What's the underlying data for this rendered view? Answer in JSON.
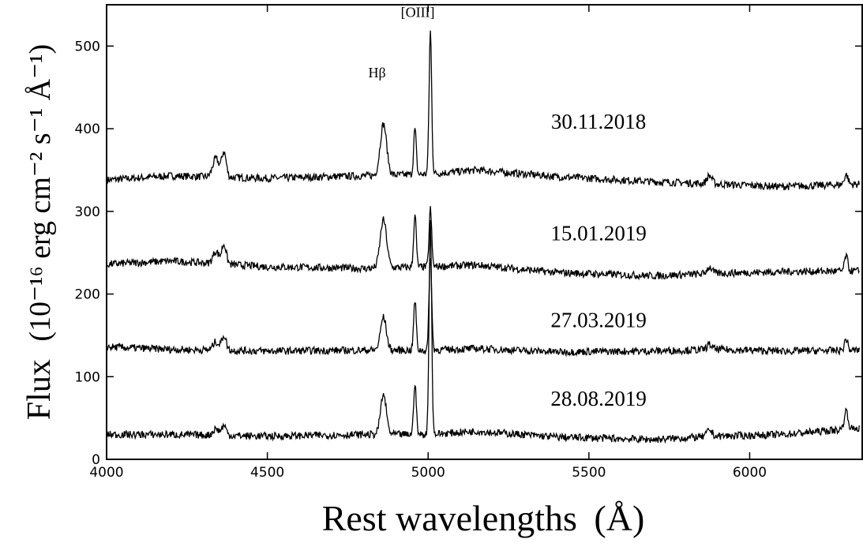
{
  "chart_data": {
    "type": "line",
    "xlabel": "Rest wavelengths",
    "xlabel_unit": "Å",
    "ylabel": "Flux",
    "ylabel_unit": "(10⁻¹⁶ erg cm⁻² s⁻¹ Å⁻¹)",
    "xlim": [
      4000,
      6350
    ],
    "ylim": [
      0,
      550
    ],
    "xticks": [
      4000,
      4500,
      5000,
      5500,
      6000
    ],
    "yticks": [
      0,
      100,
      200,
      300,
      400,
      500
    ],
    "grid": false,
    "annotations": [
      {
        "text": "Hβ",
        "x": 4861
      },
      {
        "text": "[OIII]",
        "x": 5007
      }
    ],
    "series": [
      {
        "name": "30.11.2018",
        "baseline": [
          [
            4000,
            338
          ],
          [
            4200,
            343
          ],
          [
            4500,
            340
          ],
          [
            4800,
            343
          ],
          [
            5000,
            345
          ],
          [
            5150,
            350
          ],
          [
            5400,
            342
          ],
          [
            5700,
            336
          ],
          [
            5900,
            333
          ],
          [
            6100,
            330
          ],
          [
            6350,
            333
          ]
        ],
        "lines": [
          {
            "x": 4340,
            "height": 22,
            "width": 10
          },
          {
            "x": 4365,
            "height": 30,
            "width": 7
          },
          {
            "x": 4861,
            "height": 62,
            "width": 10
          },
          {
            "x": 4959,
            "height": 55,
            "width": 4
          },
          {
            "x": 5007,
            "height": 173,
            "width": 4
          },
          {
            "x": 5875,
            "height": 10,
            "width": 8
          },
          {
            "x": 6300,
            "height": 12,
            "width": 6
          }
        ]
      },
      {
        "name": "15.01.2019",
        "baseline": [
          [
            4000,
            236
          ],
          [
            4200,
            240
          ],
          [
            4500,
            233
          ],
          [
            4800,
            231
          ],
          [
            5000,
            233
          ],
          [
            5150,
            235
          ],
          [
            5400,
            226
          ],
          [
            5700,
            222
          ],
          [
            5900,
            225
          ],
          [
            6100,
            227
          ],
          [
            6350,
            228
          ]
        ],
        "lines": [
          {
            "x": 4340,
            "height": 15,
            "width": 9
          },
          {
            "x": 4365,
            "height": 24,
            "width": 7
          },
          {
            "x": 4861,
            "height": 58,
            "width": 10
          },
          {
            "x": 4959,
            "height": 64,
            "width": 4
          },
          {
            "x": 5007,
            "height": 70,
            "width": 4
          },
          {
            "x": 5875,
            "height": 8,
            "width": 8
          },
          {
            "x": 6300,
            "height": 18,
            "width": 5
          }
        ]
      },
      {
        "name": "27.03.2019",
        "baseline": [
          [
            4000,
            136
          ],
          [
            4200,
            133
          ],
          [
            4500,
            131
          ],
          [
            4800,
            132
          ],
          [
            5000,
            132
          ],
          [
            5150,
            134
          ],
          [
            5400,
            130
          ],
          [
            5700,
            131
          ],
          [
            5900,
            133
          ],
          [
            6100,
            131
          ],
          [
            6350,
            132
          ]
        ],
        "lines": [
          {
            "x": 4340,
            "height": 10,
            "width": 9
          },
          {
            "x": 4365,
            "height": 18,
            "width": 7
          },
          {
            "x": 4861,
            "height": 40,
            "width": 9
          },
          {
            "x": 4959,
            "height": 60,
            "width": 4
          },
          {
            "x": 5007,
            "height": 115,
            "width": 4
          },
          {
            "x": 5875,
            "height": 6,
            "width": 8
          },
          {
            "x": 6300,
            "height": 14,
            "width": 5
          }
        ]
      },
      {
        "name": "28.08.2019",
        "baseline": [
          [
            4000,
            30
          ],
          [
            4200,
            30
          ],
          [
            4500,
            28
          ],
          [
            4800,
            30
          ],
          [
            5000,
            30
          ],
          [
            5150,
            34
          ],
          [
            5400,
            27
          ],
          [
            5700,
            24
          ],
          [
            5900,
            28
          ],
          [
            6100,
            30
          ],
          [
            6350,
            38
          ]
        ],
        "lines": [
          {
            "x": 4340,
            "height": 8,
            "width": 9
          },
          {
            "x": 4365,
            "height": 12,
            "width": 7
          },
          {
            "x": 4861,
            "height": 48,
            "width": 9
          },
          {
            "x": 4959,
            "height": 63,
            "width": 4
          },
          {
            "x": 5007,
            "height": 258,
            "width": 4
          },
          {
            "x": 5875,
            "height": 8,
            "width": 8
          },
          {
            "x": 6300,
            "height": 22,
            "width": 6
          }
        ]
      }
    ]
  }
}
